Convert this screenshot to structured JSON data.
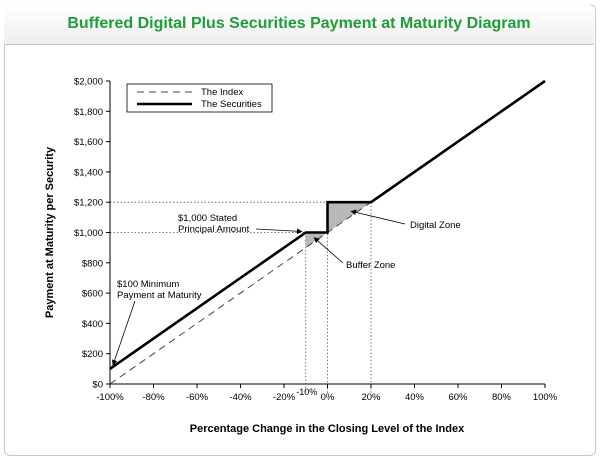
{
  "chart_data": {
    "type": "line",
    "title": "Buffered Digital Plus Securities Payment at Maturity Diagram",
    "xlabel": "Percentage Change in the Closing Level of the Index",
    "ylabel": "Payment at Maturity per Security",
    "xlim": [
      -100,
      100
    ],
    "ylim": [
      0,
      2000
    ],
    "x_ticks": [
      -100,
      -80,
      -60,
      -40,
      -20,
      0,
      20,
      40,
      60,
      80,
      100
    ],
    "x_tick_labels": [
      "-100%",
      "-80%",
      "-60%",
      "-40%",
      "-20%",
      "0%",
      "20%",
      "40%",
      "60%",
      "80%",
      "100%"
    ],
    "y_ticks": [
      0,
      200,
      400,
      600,
      800,
      1000,
      1200,
      1400,
      1600,
      1800,
      2000
    ],
    "y_tick_labels": [
      "$0",
      "$200",
      "$400",
      "$600",
      "$800",
      "$1,000",
      "$1,200",
      "$1,400",
      "$1,600",
      "$1,800",
      "$2,000"
    ],
    "grid": false,
    "legend_position": "top-left",
    "series": [
      {
        "name": "The Index",
        "style": "dashed",
        "color": "#444444",
        "x": [
          -100,
          100
        ],
        "y": [
          0,
          2000
        ]
      },
      {
        "name": "The Securities",
        "style": "solid",
        "color": "#000000",
        "x": [
          -100,
          -10,
          0,
          0,
          20,
          100
        ],
        "y": [
          100,
          1000,
          1000,
          1200,
          1200,
          2000
        ]
      }
    ],
    "reference_lines": {
      "horizontal": [
        1000,
        1200
      ],
      "vertical": [
        -10,
        0,
        20
      ]
    },
    "extra_tick_labels": [
      {
        "x": -10,
        "label": "-10%"
      }
    ],
    "shaded_zones": [
      {
        "name": "Buffer Zone",
        "points": [
          [
            -10,
            1000
          ],
          [
            0,
            1000
          ],
          [
            -10,
            900
          ]
        ]
      },
      {
        "name": "Digital Zone",
        "points": [
          [
            0,
            1000
          ],
          [
            0,
            1200
          ],
          [
            20,
            1200
          ]
        ]
      }
    ],
    "annotations": [
      {
        "lines": [
          "$1,000 Stated",
          "Principal Amount"
        ],
        "target": [
          -10,
          1000
        ]
      },
      {
        "lines": [
          "Digital Zone"
        ],
        "target": [
          10,
          1120
        ]
      },
      {
        "lines": [
          "Buffer Zone"
        ],
        "target": [
          -7,
          960
        ]
      },
      {
        "lines": [
          "$100 Minimum",
          "Payment at Maturity"
        ],
        "target": [
          -100,
          100
        ]
      }
    ],
    "colors": {
      "title": "#1e9d3a",
      "zone_fill": "#b8b8b8"
    }
  }
}
